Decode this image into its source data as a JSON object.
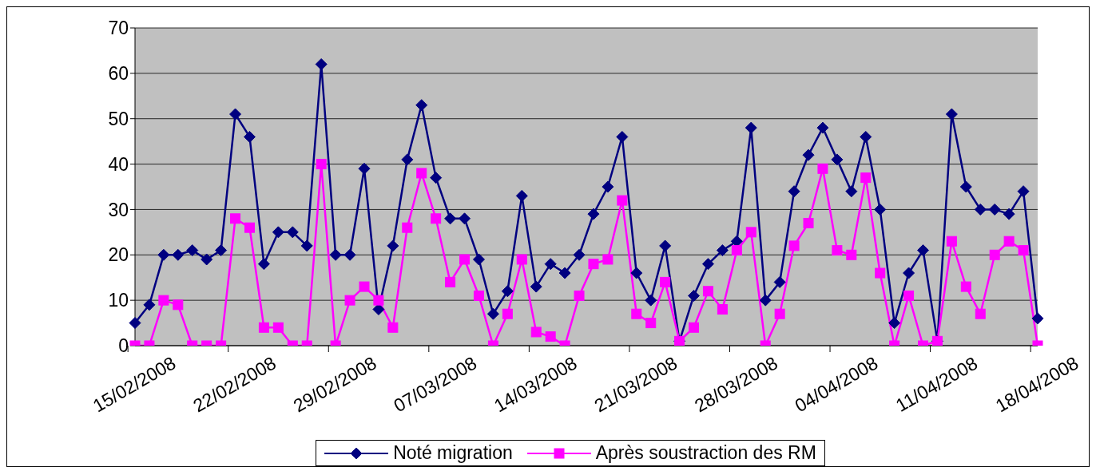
{
  "chart_data": {
    "type": "line",
    "categories": [
      "15/02/2008",
      null,
      null,
      null,
      null,
      null,
      null,
      "22/02/2008",
      null,
      null,
      null,
      null,
      null,
      null,
      "29/02/2008",
      null,
      null,
      null,
      null,
      null,
      null,
      "07/03/2008",
      null,
      null,
      null,
      null,
      null,
      null,
      "14/03/2008",
      null,
      null,
      null,
      null,
      null,
      null,
      "21/03/2008",
      null,
      null,
      null,
      null,
      null,
      null,
      "28/03/2008",
      null,
      null,
      null,
      null,
      null,
      null,
      "04/04/2008",
      null,
      null,
      null,
      null,
      null,
      null,
      "11/04/2008",
      null,
      null,
      null,
      null,
      null,
      null,
      "18/04/2008"
    ],
    "series": [
      {
        "name": "Noté migration",
        "color": "#000080",
        "marker": "diamond",
        "values": [
          5,
          9,
          20,
          20,
          21,
          19,
          21,
          51,
          46,
          18,
          25,
          25,
          22,
          62,
          20,
          20,
          39,
          8,
          22,
          41,
          53,
          37,
          28,
          28,
          19,
          7,
          12,
          33,
          13,
          18,
          16,
          20,
          29,
          35,
          46,
          16,
          10,
          22,
          1,
          11,
          18,
          21,
          23,
          48,
          10,
          14,
          34,
          42,
          48,
          41,
          34,
          46,
          30,
          5,
          16,
          21,
          1,
          51,
          35,
          30,
          30,
          29,
          34,
          6
        ]
      },
      {
        "name": "Après soustraction des RM",
        "color": "#ff00ff",
        "marker": "square",
        "values": [
          0,
          0,
          10,
          9,
          0,
          0,
          0,
          28,
          26,
          4,
          4,
          0,
          0,
          40,
          0,
          10,
          13,
          10,
          4,
          26,
          38,
          28,
          14,
          19,
          11,
          0,
          7,
          19,
          3,
          2,
          0,
          11,
          18,
          19,
          32,
          7,
          5,
          14,
          1,
          4,
          12,
          8,
          21,
          25,
          0,
          7,
          22,
          27,
          39,
          21,
          20,
          37,
          16,
          0,
          11,
          0,
          1,
          23,
          13,
          7,
          20,
          23,
          21,
          0
        ]
      }
    ],
    "ylim": [
      0,
      70
    ],
    "yticks": [
      0,
      10,
      20,
      30,
      40,
      50,
      60,
      70
    ],
    "grid": "y",
    "legend": "bottom"
  }
}
